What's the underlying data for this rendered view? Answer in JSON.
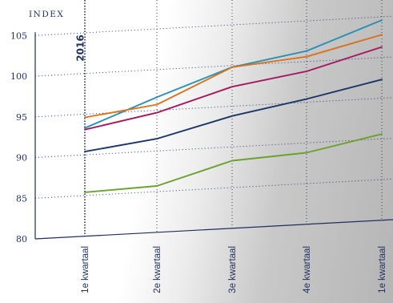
{
  "chart_data": {
    "type": "line",
    "ylabel": "INDEX",
    "ylim": [
      80,
      105
    ],
    "yticks": [
      80,
      85,
      90,
      95,
      100,
      105
    ],
    "categories": [
      "1e kwartaal",
      "2e kwartaal",
      "3e kwartaal",
      "4e kwartaal",
      "1e kwartaal"
    ],
    "year_markers": [
      {
        "label": "2016",
        "category_index": 0
      }
    ],
    "grid": "dotted",
    "legend": "none",
    "series": [
      {
        "color": "#2a8fb0",
        "values": [
          93.3,
          96.6,
          99.8,
          101.3,
          104.6
        ]
      },
      {
        "color": "#d9731c",
        "values": [
          94.6,
          95.7,
          99.8,
          100.6,
          102.8
        ]
      },
      {
        "color": "#a5175e",
        "values": [
          93.1,
          94.7,
          97.4,
          98.8,
          101.3
        ]
      },
      {
        "color": "#1a3668",
        "values": [
          90.4,
          91.5,
          93.8,
          95.4,
          97.3
        ]
      },
      {
        "color": "#6aa22c",
        "values": [
          85.4,
          85.7,
          88.3,
          88.8,
          90.6
        ]
      }
    ]
  }
}
